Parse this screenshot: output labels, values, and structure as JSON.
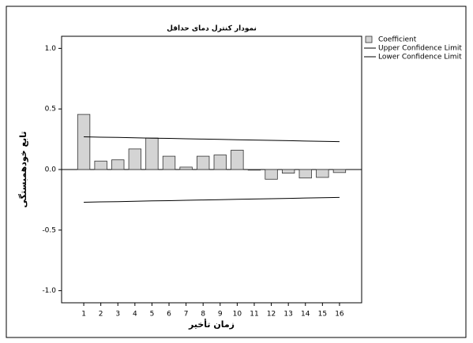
{
  "chart_data": {
    "type": "bar",
    "title": "نمودار کنترل دمای حداقل",
    "x_label": "زمان تأخیر",
    "y_label": "تابع خودهمبستگی",
    "categories": [
      "1",
      "2",
      "3",
      "4",
      "5",
      "6",
      "7",
      "8",
      "9",
      "10",
      "11",
      "12",
      "13",
      "14",
      "15",
      "16"
    ],
    "series": [
      {
        "name": "Coefficient",
        "type": "bar",
        "color": "#d4d4d4",
        "values": [
          0.455,
          0.07,
          0.08,
          0.17,
          0.26,
          0.11,
          0.02,
          0.11,
          0.12,
          0.16,
          -0.005,
          -0.08,
          -0.03,
          -0.07,
          -0.065,
          -0.025
        ]
      },
      {
        "name": "Upper Confidence Limit",
        "type": "line",
        "color": "#000000",
        "values": [
          0.27,
          0.267,
          0.265,
          0.262,
          0.259,
          0.257,
          0.254,
          0.251,
          0.249,
          0.246,
          0.243,
          0.241,
          0.238,
          0.235,
          0.233,
          0.23
        ]
      },
      {
        "name": "Lower Confidence Limit",
        "type": "line",
        "color": "#000000",
        "values": [
          -0.27,
          -0.267,
          -0.265,
          -0.262,
          -0.259,
          -0.257,
          -0.254,
          -0.251,
          -0.249,
          -0.246,
          -0.243,
          -0.241,
          -0.238,
          -0.235,
          -0.233,
          -0.23
        ]
      }
    ],
    "ylim": [
      -1.1,
      1.1
    ],
    "yticks": [
      {
        "value": 1,
        "label": "1.0"
      },
      {
        "value": 0.5,
        "label": "0.5"
      },
      {
        "value": 0,
        "label": "0.0"
      },
      {
        "value": -0.5,
        "label": "-0.5"
      },
      {
        "value": -1,
        "label": "-1.0"
      }
    ],
    "legend": "right"
  }
}
